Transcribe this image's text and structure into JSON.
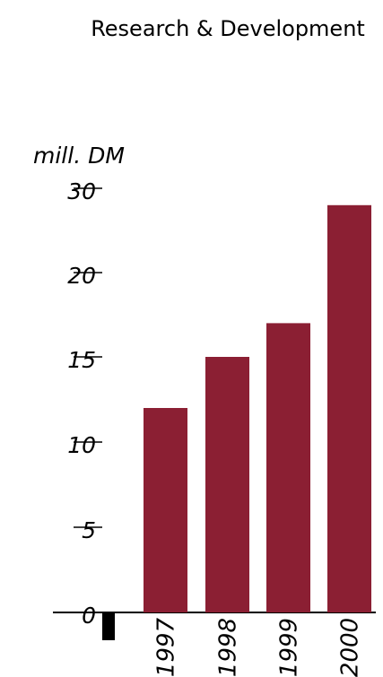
{
  "chart_data": {
    "type": "bar",
    "title": "Research & Development",
    "ylabel": "mill. DM",
    "categories": [
      "1997",
      "1998",
      "1999",
      "2000"
    ],
    "values": [
      12,
      15,
      17,
      28
    ],
    "y_ticks": [
      "0",
      "5",
      "10",
      "15",
      "20",
      "30"
    ],
    "ylim": [
      0,
      30
    ],
    "grid": false,
    "colors": {
      "bar": "#8b1f33",
      "axis": "#000000"
    }
  }
}
